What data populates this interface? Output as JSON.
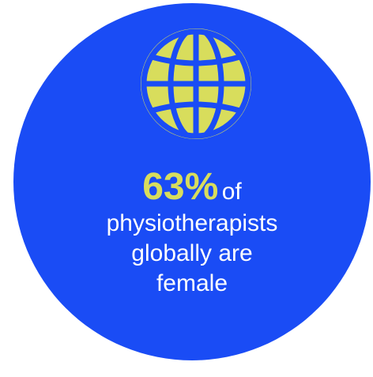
{
  "stat": {
    "value": "63%",
    "suffix": "of"
  },
  "description": [
    "physiotherapists",
    "globally are",
    "female"
  ],
  "colors": {
    "circle": "#1a4cf5",
    "accent": "#d8dd5c",
    "text": "#ffffff"
  },
  "icon": "globe-icon"
}
